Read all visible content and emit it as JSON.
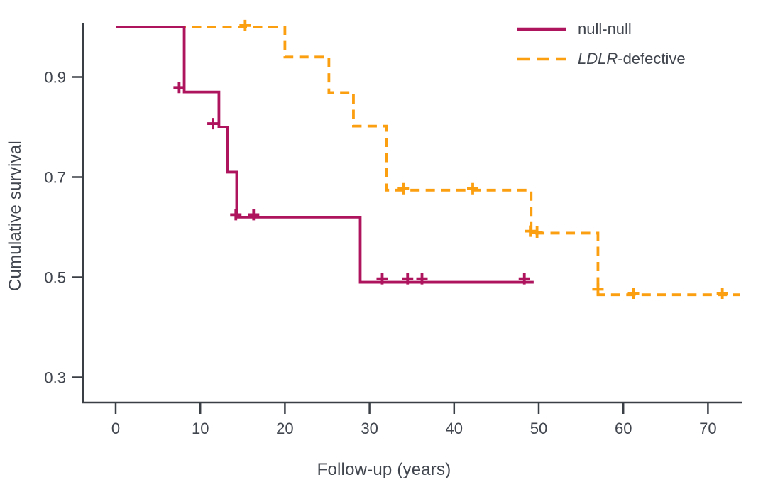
{
  "chart_data": {
    "type": "line",
    "subtype": "kaplan-meier-step-survival",
    "title": "",
    "xlabel": "Follow-up (years)",
    "ylabel": "Cumulative survival",
    "xticks": [
      0,
      10,
      20,
      30,
      40,
      50,
      60,
      70
    ],
    "yticks": [
      0.3,
      0.5,
      0.7,
      0.9
    ],
    "xlim": [
      -3.9,
      74.2
    ],
    "ylim": [
      0.25,
      1.01
    ],
    "grid": false,
    "legend_position": "top-right",
    "series": [
      {
        "name": "null-null",
        "label_italic": "",
        "label_regular": "null-null",
        "color": "#AE135E",
        "style": "solid",
        "steps": [
          [
            0,
            1.0
          ],
          [
            8.1,
            0.87
          ],
          [
            12.2,
            0.8
          ],
          [
            13.2,
            0.71
          ],
          [
            14.3,
            0.62
          ],
          [
            28.9,
            0.49
          ]
        ],
        "end_x": 49.4,
        "censors": [
          [
            7.5,
            0.879
          ],
          [
            11.5,
            0.807
          ],
          [
            14.2,
            0.625
          ],
          [
            16.3,
            0.625
          ],
          [
            31.5,
            0.497
          ],
          [
            34.5,
            0.497
          ],
          [
            36.2,
            0.497
          ],
          [
            48.3,
            0.497
          ]
        ]
      },
      {
        "name": "LDLR-defective",
        "label_italic": "LDLR",
        "label_regular": "-defective",
        "color": "#FB9E0F",
        "style": "dashed",
        "steps": [
          [
            0,
            1.0
          ],
          [
            20.0,
            0.94
          ],
          [
            25.2,
            0.869
          ],
          [
            28.1,
            0.802
          ],
          [
            32.0,
            0.674
          ],
          [
            49.1,
            0.588
          ],
          [
            57.0,
            0.465
          ]
        ],
        "end_x": 73.8,
        "censors": [
          [
            15.3,
            1.003
          ],
          [
            34.0,
            0.677
          ],
          [
            42.2,
            0.677
          ],
          [
            49.0,
            0.592
          ],
          [
            49.8,
            0.59
          ],
          [
            57.0,
            0.476
          ],
          [
            61.2,
            0.468
          ],
          [
            71.7,
            0.468
          ]
        ]
      }
    ],
    "colors": {
      "axis": "#3A3F46",
      "tick_label": "#41464E",
      "background": "#FFFFFF"
    }
  }
}
